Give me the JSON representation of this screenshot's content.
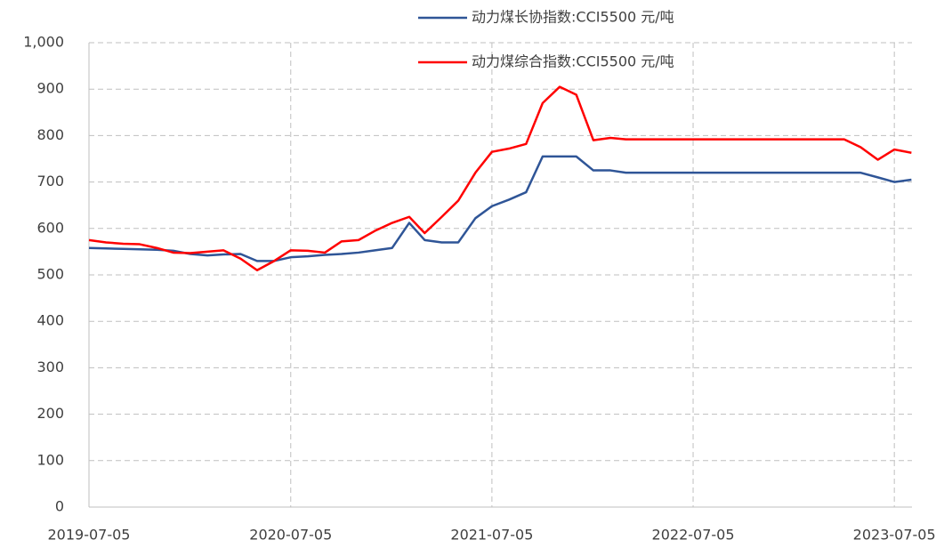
{
  "chart_data": {
    "type": "line",
    "x": [
      "2019-07-05",
      "2019-08-05",
      "2019-09-05",
      "2019-10-05",
      "2019-11-05",
      "2019-12-05",
      "2020-01-05",
      "2020-02-05",
      "2020-03-05",
      "2020-04-05",
      "2020-05-05",
      "2020-06-05",
      "2020-07-05",
      "2020-08-05",
      "2020-09-05",
      "2020-10-05",
      "2020-11-05",
      "2020-12-05",
      "2021-01-05",
      "2021-02-05",
      "2021-03-05",
      "2021-04-05",
      "2021-05-05",
      "2021-06-05",
      "2021-07-05",
      "2021-08-05",
      "2021-09-05",
      "2021-10-05",
      "2021-11-05",
      "2021-12-05",
      "2022-01-05",
      "2022-02-05",
      "2022-03-05",
      "2022-04-05",
      "2022-05-05",
      "2022-06-05",
      "2022-07-05",
      "2022-08-05",
      "2022-09-05",
      "2022-10-05",
      "2022-11-05",
      "2022-12-05",
      "2023-01-05",
      "2023-02-05",
      "2023-03-05",
      "2023-04-05",
      "2023-05-05",
      "2023-06-05",
      "2023-07-05",
      "2023-08-05"
    ],
    "series": [
      {
        "name": "动力煤长协指数:CCI5500 元/吨",
        "color": "#2f5597",
        "values": [
          558,
          557,
          556,
          555,
          554,
          552,
          545,
          542,
          544,
          545,
          530,
          530,
          538,
          540,
          543,
          545,
          548,
          553,
          558,
          612,
          575,
          570,
          570,
          622,
          648,
          662,
          678,
          755,
          755,
          755,
          725,
          725,
          720,
          720,
          720,
          720,
          720,
          720,
          720,
          720,
          720,
          720,
          720,
          720,
          720,
          720,
          720,
          710,
          700,
          705
        ]
      },
      {
        "name": "动力煤综合指数:CCI5500 元/吨",
        "color": "#ff0000",
        "values": [
          575,
          570,
          567,
          566,
          558,
          548,
          547,
          550,
          553,
          535,
          510,
          530,
          553,
          552,
          548,
          572,
          575,
          595,
          612,
          625,
          590,
          625,
          660,
          720,
          765,
          772,
          782,
          870,
          905,
          888,
          790,
          795,
          792,
          792,
          792,
          792,
          792,
          792,
          792,
          792,
          792,
          792,
          792,
          792,
          792,
          792,
          775,
          748,
          770,
          763
        ]
      }
    ],
    "xlim": [
      "2019-07-05",
      "2023-08-06"
    ],
    "xticks": [
      "2019-07-05",
      "2020-07-05",
      "2021-07-05",
      "2022-07-05",
      "2023-07-05"
    ],
    "ylim": [
      0,
      1000
    ],
    "yticks": [
      0,
      100,
      200,
      300,
      400,
      500,
      600,
      700,
      800,
      900,
      {
        "value": 1000,
        "label": "1,000"
      }
    ],
    "grid": true,
    "legend": "top"
  }
}
